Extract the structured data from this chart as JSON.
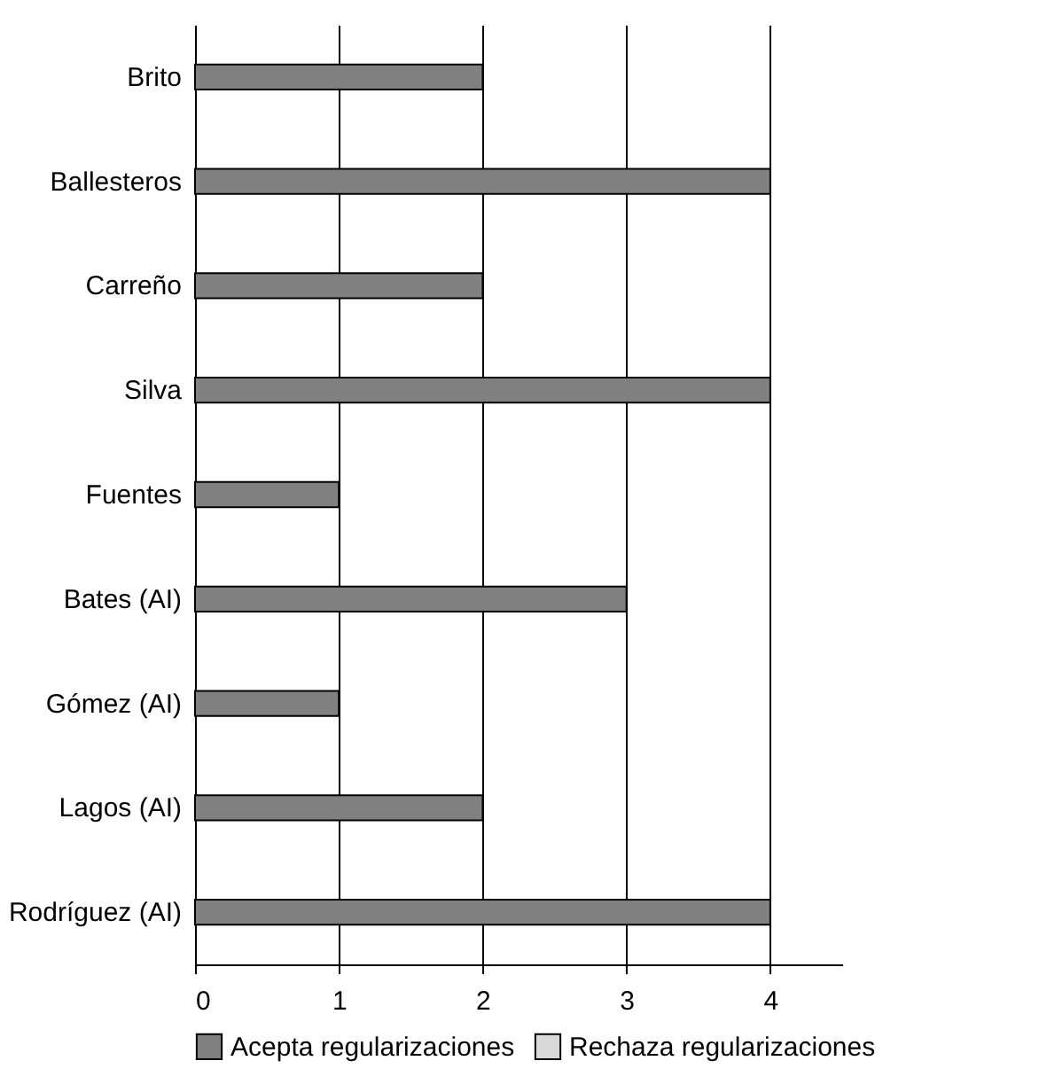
{
  "chart_data": {
    "type": "bar",
    "orientation": "horizontal",
    "categories": [
      "Brito",
      "Ballesteros",
      "Carreño",
      "Silva",
      "Fuentes",
      "Bates (AI)",
      "Gómez (AI)",
      "Lagos (AI)",
      "Rodríguez (AI)"
    ],
    "series": [
      {
        "name": "Acepta regularizaciones",
        "color": "#808080",
        "values": [
          2,
          4,
          2,
          4,
          1,
          3,
          1,
          2,
          4
        ]
      },
      {
        "name": "Rechaza regularizaciones",
        "color": "#d9d9d9",
        "values": [
          null,
          null,
          null,
          null,
          null,
          null,
          null,
          null,
          null
        ]
      }
    ],
    "xlim": [
      0,
      4.5
    ],
    "xticks": [
      0,
      1,
      2,
      3,
      4
    ],
    "grid": "x",
    "legend": "bottom"
  }
}
